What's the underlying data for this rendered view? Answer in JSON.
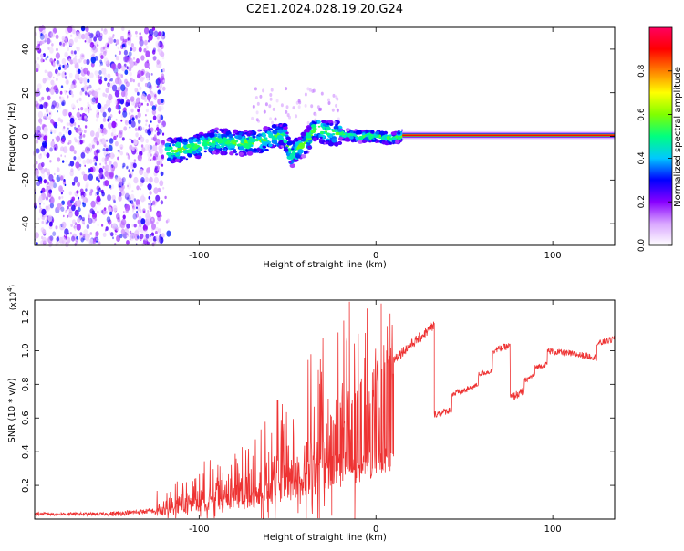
{
  "title": "C2E1.2024.028.19.20.G24",
  "chart_data": [
    {
      "type": "heatmap",
      "name": "spectrogram",
      "xlabel": "Height of straight line (km)",
      "ylabel": "Frequency (Hz)",
      "xlim": [
        -193,
        135
      ],
      "ylim": [
        -50,
        50
      ],
      "xticks": [
        -100,
        0,
        100
      ],
      "xtick_labels": [
        "-100",
        "0",
        "100"
      ],
      "yticks": [
        -40,
        -20,
        0,
        20,
        40
      ],
      "ytick_labels": [
        "-40",
        "-20",
        "0",
        "20",
        "40"
      ],
      "colorbar": {
        "label": "Normalized spectral amplitude",
        "range": [
          0,
          1
        ],
        "ticks": [
          0.0,
          0.2,
          0.4,
          0.6,
          0.8
        ],
        "tick_labels": [
          "0.0",
          "0.2",
          "0.4",
          "0.6",
          "0.8"
        ],
        "colors": [
          "#ffffff",
          "#d9a6ff",
          "#8800ff",
          "#0000ff",
          "#00c8ff",
          "#00ff80",
          "#80ff00",
          "#ffff00",
          "#ff8000",
          "#ff0000",
          "#ff0060"
        ]
      },
      "features": {
        "noise_region_x": [
          -193,
          -120
        ],
        "signal_trace": [
          {
            "x": -118,
            "f": -7
          },
          {
            "x": -110,
            "f": -6
          },
          {
            "x": -100,
            "f": -4
          },
          {
            "x": -90,
            "f": -2
          },
          {
            "x": -80,
            "f": -3
          },
          {
            "x": -70,
            "f": -3
          },
          {
            "x": -60,
            "f": -1
          },
          {
            "x": -52,
            "f": 1
          },
          {
            "x": -48,
            "f": -9
          },
          {
            "x": -40,
            "f": -3
          },
          {
            "x": -34,
            "f": 4
          },
          {
            "x": -28,
            "f": 2
          },
          {
            "x": -20,
            "f": 1
          },
          {
            "x": -10,
            "f": 0
          },
          {
            "x": 0,
            "f": 0
          },
          {
            "x": 10,
            "f": -1
          },
          {
            "x": 15,
            "f": 0.5
          },
          {
            "x": 135,
            "f": 0.5
          }
        ],
        "carrier_line_f": 0.5,
        "carrier_line_x": [
          15,
          135
        ]
      }
    },
    {
      "type": "line",
      "name": "snr",
      "xlabel": "Height of straight line (km)",
      "ylabel": "SNR (10 * v/v)",
      "y_multiplier_label": "(x10",
      "y_multiplier_exp": "4",
      "y_multiplier_close": ")",
      "xlim": [
        -193,
        135
      ],
      "ylim": [
        0,
        1.3
      ],
      "xticks": [
        -100,
        0,
        100
      ],
      "xtick_labels": [
        "-100",
        "0",
        "100"
      ],
      "yticks": [
        0.2,
        0.4,
        0.6,
        0.8,
        1.0,
        1.2
      ],
      "ytick_labels": [
        "0.2",
        "0.4",
        "0.6",
        "0.8",
        "1.0",
        "1.2"
      ],
      "color": "#ee3333",
      "series": [
        {
          "name": "SNR",
          "segments": [
            {
              "x0": -193,
              "x1": -150,
              "y0": 0.03,
              "y1": 0.03,
              "noise": 0.02
            },
            {
              "x0": -150,
              "x1": -125,
              "y0": 0.03,
              "y1": 0.05,
              "noise": 0.03
            },
            {
              "x0": -125,
              "x1": -100,
              "y0": 0.06,
              "y1": 0.15,
              "noise": 0.12
            },
            {
              "x0": -100,
              "x1": -70,
              "y0": 0.12,
              "y1": 0.25,
              "noise": 0.22
            },
            {
              "x0": -70,
              "x1": -40,
              "y0": 0.2,
              "y1": 0.45,
              "noise": 0.4
            },
            {
              "x0": -40,
              "x1": -15,
              "y0": 0.4,
              "y1": 0.75,
              "noise": 0.55
            },
            {
              "x0": -15,
              "x1": 10,
              "y0": 0.65,
              "y1": 0.95,
              "noise": 0.4
            },
            {
              "x0": 10,
              "x1": 33,
              "y0": 0.95,
              "y1": 1.15,
              "noise": 0.06
            },
            {
              "x0": 33,
              "x1": 43,
              "y0": 0.62,
              "y1": 0.65,
              "noise": 0.04
            },
            {
              "x0": 43,
              "x1": 52,
              "y0": 0.74,
              "y1": 0.77,
              "noise": 0.04
            },
            {
              "x0": 52,
              "x1": 58,
              "y0": 0.77,
              "y1": 0.8,
              "noise": 0.03
            },
            {
              "x0": 58,
              "x1": 66,
              "y0": 0.86,
              "y1": 0.88,
              "noise": 0.03
            },
            {
              "x0": 66,
              "x1": 76,
              "y0": 1.0,
              "y1": 1.03,
              "noise": 0.04
            },
            {
              "x0": 76,
              "x1": 84,
              "y0": 0.72,
              "y1": 0.76,
              "noise": 0.05
            },
            {
              "x0": 84,
              "x1": 90,
              "y0": 0.82,
              "y1": 0.86,
              "noise": 0.03
            },
            {
              "x0": 90,
              "x1": 97,
              "y0": 0.9,
              "y1": 0.92,
              "noise": 0.03
            },
            {
              "x0": 97,
              "x1": 125,
              "y0": 1.0,
              "y1": 0.96,
              "noise": 0.04
            },
            {
              "x0": 125,
              "x1": 135,
              "y0": 1.04,
              "y1": 1.07,
              "noise": 0.04
            }
          ],
          "spikes": [
            {
              "x": -15,
              "y": 1.29
            },
            {
              "x": -10,
              "y": 1.1
            },
            {
              "x": -5,
              "y": 1.25
            },
            {
              "x": 3,
              "y": 1.28
            },
            {
              "x": 8,
              "y": 1.22
            },
            {
              "x": -2,
              "y": 0.3
            },
            {
              "x": -12,
              "y": 0.0
            },
            {
              "x": -25,
              "y": 0.02
            }
          ]
        }
      ]
    }
  ]
}
